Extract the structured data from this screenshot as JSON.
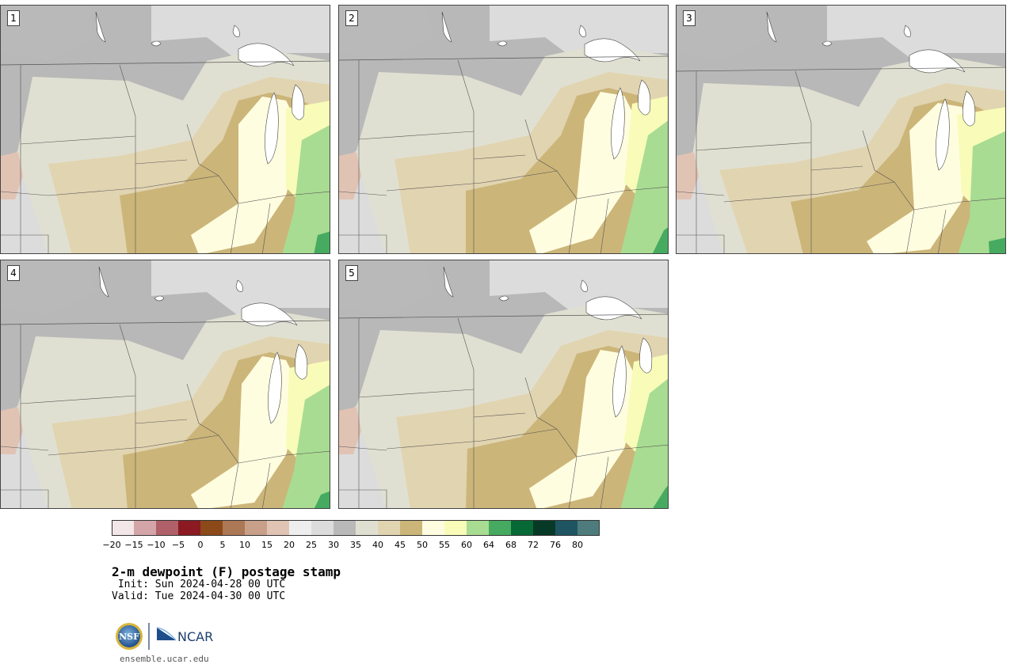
{
  "panels": [
    {
      "label": "1",
      "members": "1"
    },
    {
      "label": "2",
      "members": "2"
    },
    {
      "label": "3",
      "members": "3"
    },
    {
      "label": "4",
      "members": "4"
    },
    {
      "label": "5",
      "members": "5"
    }
  ],
  "colorbar": {
    "ticks": [
      "−20",
      "−15",
      "−10",
      "−5",
      "0",
      "5",
      "10",
      "15",
      "20",
      "25",
      "30",
      "35",
      "40",
      "45",
      "50",
      "55",
      "60",
      "64",
      "68",
      "72",
      "76",
      "80"
    ],
    "colors": [
      "#f2e6e6",
      "#d4a5a8",
      "#b06068",
      "#8b1a22",
      "#8b4a18",
      "#ac7855",
      "#c8a08a",
      "#e1c3b4",
      "#eeeeee",
      "#dcdcdc",
      "#b9b9b9",
      "#e0e0d2",
      "#e1d4b0",
      "#ccb579",
      "#fffde0",
      "#f8fcb8",
      "#a8dc92",
      "#46ab60",
      "#076a36",
      "#073a26",
      "#1f5463",
      "#4e7c7c"
    ]
  },
  "text": {
    "title": "2-m dewpoint (F) postage stamp",
    "init": " Init: Sun 2024-04-28 00 UTC",
    "valid": "Valid: Tue 2024-04-30 00 UTC",
    "logo_nsf": "NSF",
    "logo_ncar": "NCAR",
    "website": "ensemble.ucar.edu"
  }
}
